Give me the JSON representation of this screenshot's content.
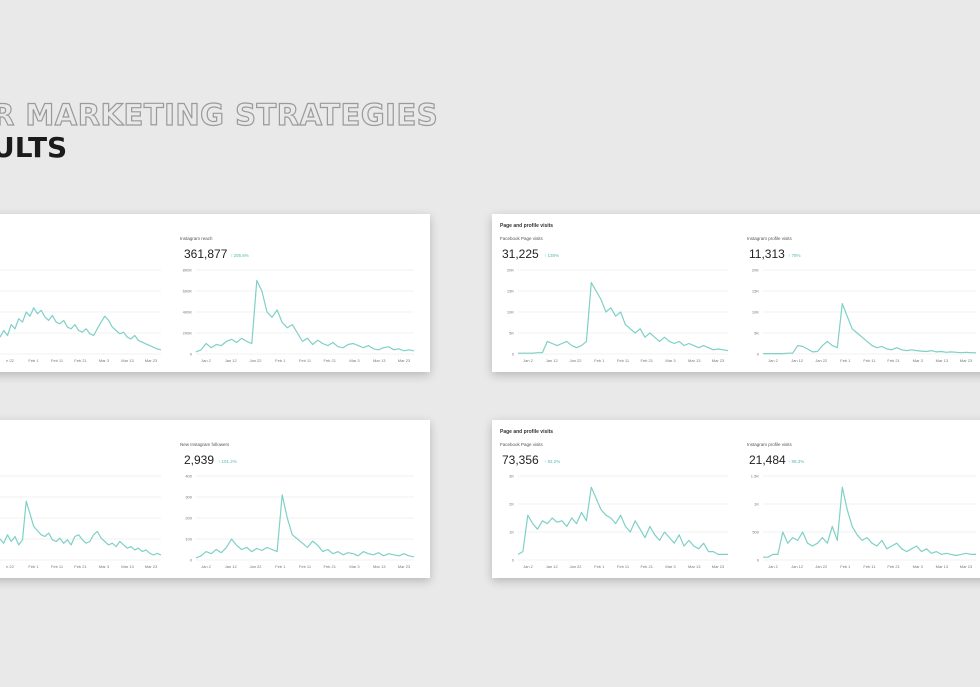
{
  "heading": {
    "line1": "R MARKETING STRATEGIES",
    "line2": "ULTS"
  },
  "colors": {
    "background": "#e9e9e9",
    "line": "#7fd0c7",
    "grid": "#e4e4e4",
    "change": "#5bb8b0"
  },
  "cards": [
    {
      "title": "",
      "panels": [
        {
          "label": "",
          "value": "",
          "change": "",
          "chart_index": 0
        },
        {
          "label": "Instagram reach",
          "value": "361,877",
          "change": "↑ 205.8%",
          "chart_index": 1
        }
      ]
    },
    {
      "title": "Page and profile visits",
      "panels": [
        {
          "label": "Facebook Page visits",
          "value": "31,225",
          "change": "↑ 138%",
          "chart_index": 2
        },
        {
          "label": "Instagram profile visits",
          "value": "11,313",
          "change": "↑ 78%",
          "chart_index": 3
        }
      ]
    },
    {
      "title": "",
      "panels": [
        {
          "label": "",
          "value": "",
          "change": "",
          "chart_index": 4
        },
        {
          "label": "New Instagram followers",
          "value": "2,939",
          "change": "↑ 101.2%",
          "chart_index": 5
        }
      ]
    },
    {
      "title": "Page and profile visits",
      "panels": [
        {
          "label": "Facebook Page visits",
          "value": "73,356",
          "change": "↑ 92.2%",
          "chart_index": 6
        },
        {
          "label": "Instagram profile visits",
          "value": "21,484",
          "change": "↑ 98.3%",
          "chart_index": 7
        }
      ]
    }
  ],
  "chart_data": [
    {
      "type": "line",
      "xlabels": [
        "n 22",
        "Feb 1",
        "Feb 11",
        "Feb 21",
        "Mar 3",
        "Mar 13",
        "Mar 23"
      ],
      "ylabels": [],
      "ylim": [
        0,
        100
      ],
      "values": [
        20,
        28,
        22,
        35,
        30,
        42,
        38,
        50,
        45,
        55,
        48,
        52,
        44,
        40,
        46,
        38,
        36,
        40,
        32,
        30,
        35,
        28,
        26,
        30,
        24,
        22,
        30,
        38,
        45,
        40,
        32,
        28,
        24,
        26,
        20,
        18,
        22,
        16,
        14,
        12,
        10,
        8,
        6,
        5
      ]
    },
    {
      "type": "line",
      "xlabels": [
        "Jan 2",
        "Jan 12",
        "Jan 22",
        "Feb 1",
        "Feb 11",
        "Feb 21",
        "Mar 3",
        "Mar 13",
        "Mar 23"
      ],
      "ylabels": [
        "0",
        "200K",
        "400K",
        "600K",
        "800K"
      ],
      "ylim": [
        0,
        800
      ],
      "values": [
        20,
        40,
        100,
        60,
        90,
        80,
        120,
        140,
        110,
        150,
        120,
        100,
        700,
        600,
        400,
        350,
        420,
        300,
        250,
        280,
        200,
        120,
        150,
        90,
        130,
        100,
        80,
        110,
        70,
        60,
        90,
        100,
        80,
        60,
        80,
        50,
        40,
        60,
        70,
        40,
        50,
        30,
        40,
        30
      ]
    },
    {
      "type": "line",
      "xlabels": [
        "Jan 2",
        "Jan 12",
        "Jan 22",
        "Feb 1",
        "Feb 11",
        "Feb 21",
        "Mar 3",
        "Mar 13",
        "Mar 23"
      ],
      "ylabels": [
        "0",
        "5K",
        "10K",
        "15K",
        "20K"
      ],
      "ylim": [
        0,
        20
      ],
      "values": [
        0.2,
        0.2,
        0.2,
        0.2,
        0.3,
        0.3,
        3,
        2.5,
        2,
        2.5,
        3,
        2,
        1.5,
        2,
        3,
        17,
        15,
        13,
        10,
        11,
        9,
        10,
        7,
        6,
        5,
        6,
        4,
        5,
        4,
        3,
        4,
        3,
        2.5,
        3,
        2,
        2.5,
        2,
        1.5,
        2,
        1.5,
        1,
        1.2,
        1,
        0.8
      ]
    },
    {
      "type": "line",
      "xlabels": [
        "Jan 2",
        "Jan 12",
        "Jan 22",
        "Feb 1",
        "Feb 11",
        "Feb 21",
        "Mar 3",
        "Mar 13",
        "Mar 23"
      ],
      "ylabels": [
        "0",
        "5K",
        "10K",
        "15K",
        "20K"
      ],
      "ylim": [
        0,
        20
      ],
      "values": [
        0.1,
        0.1,
        0.1,
        0.1,
        0.1,
        0.2,
        0.2,
        2,
        1.8,
        1.2,
        0.5,
        0.6,
        2,
        3,
        2,
        1.5,
        12,
        9,
        6,
        5,
        4,
        3,
        2,
        1.5,
        1.8,
        1.2,
        1,
        1.5,
        1,
        0.8,
        1,
        0.8,
        0.7,
        0.6,
        0.8,
        0.5,
        0.6,
        0.4,
        0.5,
        0.4,
        0.3,
        0.4,
        0.3,
        0.3
      ]
    },
    {
      "type": "line",
      "xlabels": [
        "n 22",
        "Feb 1",
        "Feb 11",
        "Feb 21",
        "Mar 3",
        "Mar 13",
        "Mar 23"
      ],
      "ylabels": [],
      "ylim": [
        0,
        100
      ],
      "values": [
        25,
        20,
        30,
        22,
        28,
        18,
        24,
        70,
        55,
        40,
        35,
        30,
        28,
        32,
        24,
        22,
        26,
        20,
        24,
        18,
        28,
        30,
        24,
        20,
        22,
        30,
        34,
        26,
        22,
        18,
        20,
        16,
        22,
        18,
        14,
        16,
        12,
        14,
        10,
        12,
        8,
        6,
        8,
        6
      ]
    },
    {
      "type": "line",
      "xlabels": [
        "Jan 2",
        "Jan 12",
        "Jan 22",
        "Feb 1",
        "Feb 11",
        "Feb 21",
        "Mar 3",
        "Mar 13",
        "Mar 23"
      ],
      "ylabels": [
        "0",
        "100",
        "200",
        "300",
        "400"
      ],
      "ylim": [
        0,
        400
      ],
      "values": [
        10,
        20,
        40,
        30,
        50,
        35,
        60,
        100,
        70,
        50,
        60,
        40,
        55,
        45,
        60,
        50,
        40,
        310,
        200,
        120,
        100,
        80,
        60,
        90,
        70,
        40,
        50,
        30,
        40,
        25,
        35,
        30,
        20,
        40,
        30,
        25,
        35,
        20,
        30,
        25,
        20,
        30,
        20,
        15
      ]
    },
    {
      "type": "line",
      "xlabels": [
        "Jan 2",
        "Jan 12",
        "Jan 22",
        "Feb 1",
        "Feb 11",
        "Feb 21",
        "Mar 3",
        "Mar 13",
        "Mar 23"
      ],
      "ylabels": [
        "0",
        "1K",
        "2K",
        "3K"
      ],
      "ylim": [
        0,
        3
      ],
      "values": [
        0.2,
        0.3,
        1.6,
        1.3,
        1.1,
        1.4,
        1.3,
        1.5,
        1.35,
        1.4,
        1.2,
        1.5,
        1.3,
        1.7,
        1.4,
        2.6,
        2.2,
        1.8,
        1.6,
        1.5,
        1.3,
        1.6,
        1.2,
        1.0,
        1.4,
        1.1,
        0.8,
        1.2,
        0.9,
        0.7,
        1.0,
        0.8,
        0.6,
        0.9,
        0.5,
        0.7,
        0.5,
        0.4,
        0.6,
        0.3,
        0.3,
        0.2,
        0.2,
        0.2
      ]
    },
    {
      "type": "line",
      "xlabels": [
        "Jan 2",
        "Jan 12",
        "Jan 22",
        "Feb 1",
        "Feb 11",
        "Feb 21",
        "Mar 3",
        "Mar 13",
        "Mar 23"
      ],
      "ylabels": [
        "0",
        "500",
        "1K",
        "1.5K"
      ],
      "ylim": [
        0,
        1.5
      ],
      "values": [
        0.05,
        0.05,
        0.1,
        0.1,
        0.5,
        0.3,
        0.4,
        0.35,
        0.5,
        0.3,
        0.25,
        0.3,
        0.4,
        0.3,
        0.6,
        0.35,
        1.3,
        0.9,
        0.6,
        0.45,
        0.35,
        0.4,
        0.3,
        0.25,
        0.35,
        0.2,
        0.25,
        0.3,
        0.2,
        0.15,
        0.2,
        0.25,
        0.15,
        0.2,
        0.12,
        0.15,
        0.1,
        0.12,
        0.1,
        0.08,
        0.1,
        0.12,
        0.1,
        0.1
      ]
    }
  ]
}
